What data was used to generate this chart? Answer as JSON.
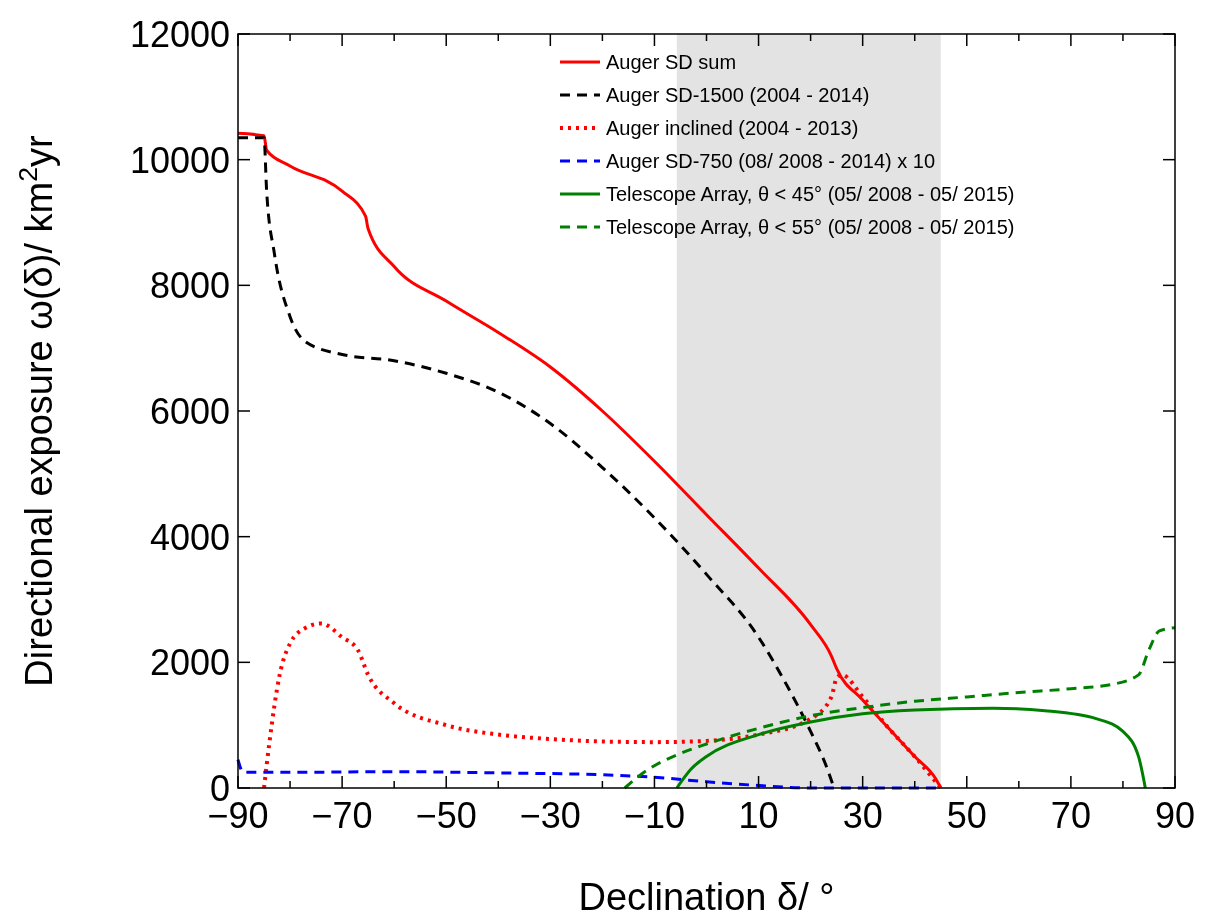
{
  "chart_data": {
    "type": "line",
    "xlabel": "Declination δ/ °",
    "ylabel": "Directional exposure ω(δ)/ km$^{2}$yr",
    "xlim": [
      -90,
      90
    ],
    "ylim": [
      0,
      12000
    ],
    "xticks": [
      {
        "value": -90,
        "label": "−90"
      },
      {
        "value": -80,
        "label": null
      },
      {
        "value": -70,
        "label": "−70"
      },
      {
        "value": -60,
        "label": null
      },
      {
        "value": -50,
        "label": "−50"
      },
      {
        "value": -40,
        "label": null
      },
      {
        "value": -30,
        "label": "−30"
      },
      {
        "value": -20,
        "label": null
      },
      {
        "value": -10,
        "label": "−10"
      },
      {
        "value": 0,
        "label": null
      },
      {
        "value": 10,
        "label": "10"
      },
      {
        "value": 20,
        "label": null
      },
      {
        "value": 30,
        "label": "30"
      },
      {
        "value": 40,
        "label": null
      },
      {
        "value": 50,
        "label": "50"
      },
      {
        "value": 60,
        "label": null
      },
      {
        "value": 70,
        "label": "70"
      },
      {
        "value": 80,
        "label": null
      },
      {
        "value": 90,
        "label": "90"
      }
    ],
    "yticks": [
      0,
      2000,
      4000,
      6000,
      8000,
      10000,
      12000
    ],
    "legend": "top right",
    "bands": [
      {
        "axis": "x",
        "from": -5.7,
        "to": 45,
        "color": "#e3e3e3"
      }
    ],
    "series": [
      {
        "name": "Auger SD sum",
        "color": "#ff0000",
        "line_style": "solid",
        "x": [
          -90,
          -85,
          -84.5,
          -80,
          -70,
          -65.5,
          -65,
          -60,
          -50,
          -40,
          -30,
          -20,
          -10,
          0,
          10,
          20,
          24,
          25,
          30,
          35,
          40,
          44,
          45
        ],
        "values": [
          10420,
          10380,
          10150,
          9900,
          9500,
          9100,
          8900,
          8300,
          7750,
          7250,
          6700,
          6000,
          5200,
          4350,
          3500,
          2600,
          2100,
          1900,
          1400,
          950,
          500,
          150,
          0
        ]
      },
      {
        "name": "Auger SD-1500 (2004 - 2014)",
        "color": "#000000",
        "line_style": "dashed",
        "x": [
          -90,
          -85,
          -84.5,
          -83,
          -80,
          -77,
          -70,
          -60,
          -50,
          -40,
          -30,
          -20,
          -10,
          0,
          10,
          15,
          20,
          23,
          24.5
        ],
        "values": [
          10350,
          10350,
          9500,
          8500,
          7500,
          7100,
          6900,
          6800,
          6600,
          6300,
          5800,
          5100,
          4300,
          3400,
          2400,
          1700,
          900,
          350,
          0
        ]
      },
      {
        "name": "Auger inclined (2004 - 2013)",
        "color": "#ff0000",
        "line_style": "dotted",
        "x": [
          -85,
          -84,
          -82,
          -80,
          -77,
          -74,
          -70,
          -67,
          -65,
          -60,
          -50,
          -40,
          -30,
          -20,
          -10,
          0,
          10,
          20,
          24,
          25,
          26,
          30,
          35,
          40,
          45
        ],
        "values": [
          0,
          700,
          1800,
          2300,
          2550,
          2620,
          2400,
          2200,
          1800,
          1350,
          1000,
          850,
          780,
          740,
          730,
          750,
          850,
          1100,
          1450,
          1750,
          1800,
          1450,
          950,
          500,
          0
        ]
      },
      {
        "name": "Auger SD-750 (08/ 2008 - 2014) x 10",
        "color": "#0000ff",
        "line_style": "dashed",
        "x": [
          -90,
          -89,
          -80,
          -60,
          -40,
          -20,
          -10,
          0,
          10,
          20,
          45
        ],
        "values": [
          450,
          250,
          250,
          260,
          240,
          210,
          170,
          100,
          40,
          0,
          0
        ]
      },
      {
        "name": "Telescope Array, θ < 45° (05/ 2008 - 05/ 2015)",
        "color": "#008000",
        "line_style": "solid",
        "x": [
          -5.7,
          -3,
          0,
          10,
          20,
          30,
          40,
          55,
          65,
          75,
          80,
          83,
          84.3
        ],
        "values": [
          0,
          300,
          500,
          850,
          1050,
          1180,
          1240,
          1270,
          1230,
          1100,
          900,
          500,
          0
        ]
      },
      {
        "name": "Telescope Array, θ < 55° (05/ 2008 - 05/ 2015)",
        "color": "#008000",
        "line_style": "dashed",
        "x": [
          -15.7,
          -12,
          -5,
          0,
          10,
          20,
          30,
          40,
          50,
          60,
          70,
          78,
          83,
          85,
          87,
          90
        ],
        "values": [
          0,
          250,
          550,
          700,
          950,
          1150,
          1280,
          1380,
          1450,
          1520,
          1580,
          1650,
          1800,
          2200,
          2500,
          2550
        ]
      }
    ]
  }
}
